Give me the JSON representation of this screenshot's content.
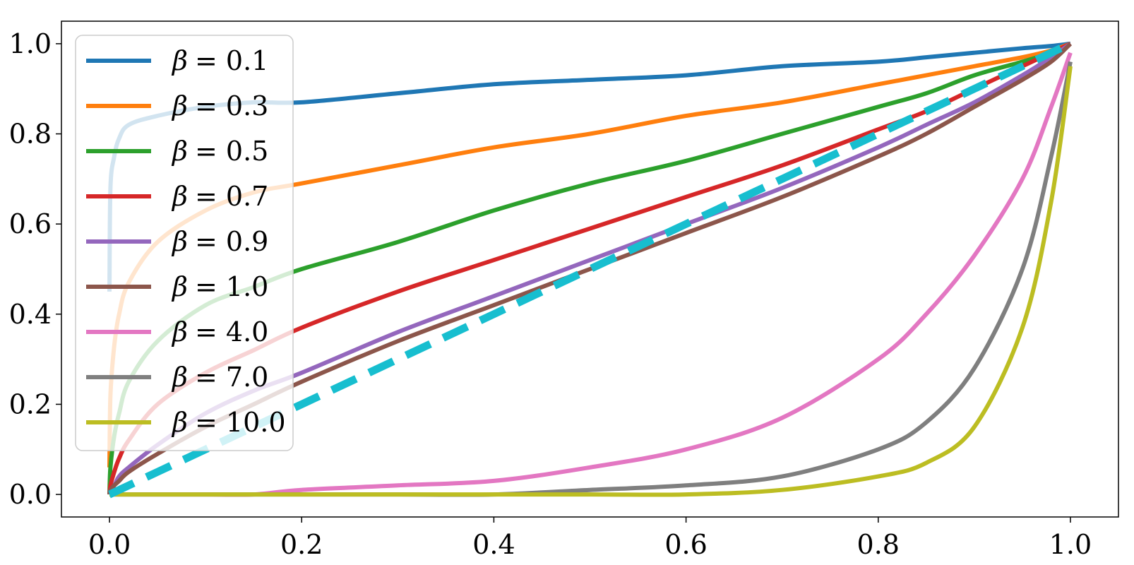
{
  "chart_data": {
    "type": "line",
    "title": "",
    "xlabel": "",
    "ylabel": "",
    "xlim": [
      -0.05,
      1.05
    ],
    "ylim": [
      -0.05,
      1.05
    ],
    "grid": false,
    "legend_position": "upper-left",
    "x_ticks": [
      "0.0",
      "0.2",
      "0.4",
      "0.6",
      "0.8",
      "1.0"
    ],
    "y_ticks": [
      "0.0",
      "0.2",
      "0.4",
      "0.6",
      "0.8",
      "1.0"
    ],
    "x": [
      0,
      0.001,
      0.005,
      0.01,
      0.02,
      0.05,
      0.1,
      0.15,
      0.2,
      0.3,
      0.4,
      0.5,
      0.6,
      0.7,
      0.8,
      0.85,
      0.9,
      0.95,
      0.98,
      1.0
    ],
    "series": [
      {
        "name": "β = 0.1",
        "legend_prefix": "β",
        "legend_value": "= 0.1",
        "color": "#1f77b4",
        "dashed": false,
        "values": [
          0.45,
          0.68,
          0.75,
          0.79,
          0.82,
          0.84,
          0.86,
          0.87,
          0.87,
          0.89,
          0.91,
          0.92,
          0.93,
          0.95,
          0.96,
          0.97,
          0.98,
          0.99,
          0.995,
          1.0
        ]
      },
      {
        "name": "β = 0.3",
        "legend_prefix": "β",
        "legend_value": "= 0.3",
        "color": "#ff7f0e",
        "dashed": false,
        "values": [
          0.06,
          0.22,
          0.33,
          0.4,
          0.47,
          0.56,
          0.63,
          0.67,
          0.69,
          0.73,
          0.77,
          0.8,
          0.84,
          0.87,
          0.91,
          0.93,
          0.95,
          0.97,
          0.985,
          1.0
        ]
      },
      {
        "name": "β = 0.5",
        "legend_prefix": "β",
        "legend_value": "= 0.5",
        "color": "#2ca02c",
        "dashed": false,
        "values": [
          0.0,
          0.06,
          0.13,
          0.18,
          0.25,
          0.34,
          0.42,
          0.46,
          0.5,
          0.56,
          0.63,
          0.69,
          0.74,
          0.8,
          0.86,
          0.89,
          0.93,
          0.96,
          0.98,
          1.0
        ]
      },
      {
        "name": "β = 0.7",
        "legend_prefix": "β",
        "legend_value": "= 0.7",
        "color": "#d62728",
        "dashed": false,
        "values": [
          0.0,
          0.02,
          0.05,
          0.08,
          0.12,
          0.2,
          0.27,
          0.32,
          0.37,
          0.45,
          0.52,
          0.59,
          0.66,
          0.73,
          0.81,
          0.85,
          0.9,
          0.95,
          0.98,
          1.0
        ]
      },
      {
        "name": "β = 0.9",
        "legend_prefix": "β",
        "legend_value": "= 0.9",
        "color": "#9467bd",
        "dashed": false,
        "values": [
          0.0,
          0.01,
          0.02,
          0.04,
          0.06,
          0.11,
          0.18,
          0.23,
          0.27,
          0.36,
          0.44,
          0.52,
          0.6,
          0.68,
          0.77,
          0.82,
          0.87,
          0.93,
          0.97,
          1.0
        ]
      },
      {
        "name": "β = 1.0",
        "legend_prefix": "β",
        "legend_value": "= 1.0",
        "color": "#8c564b",
        "dashed": false,
        "values": [
          0.0,
          0.01,
          0.02,
          0.03,
          0.05,
          0.09,
          0.15,
          0.2,
          0.25,
          0.34,
          0.42,
          0.5,
          0.58,
          0.66,
          0.75,
          0.8,
          0.86,
          0.92,
          0.96,
          1.0
        ]
      },
      {
        "name": "β = 4.0",
        "legend_prefix": "β",
        "legend_value": "= 4.0",
        "color": "#e377c2",
        "dashed": false,
        "values": [
          0.0,
          0.0,
          0.0,
          0.0,
          0.0,
          0.0,
          0.0,
          0.0,
          0.01,
          0.02,
          0.03,
          0.06,
          0.1,
          0.17,
          0.3,
          0.4,
          0.53,
          0.7,
          0.86,
          0.98
        ]
      },
      {
        "name": "β = 7.0",
        "legend_prefix": "β",
        "legend_value": "= 7.0",
        "color": "#7f7f7f",
        "dashed": false,
        "values": [
          0.0,
          0.0,
          0.0,
          0.0,
          0.0,
          0.0,
          0.0,
          0.0,
          0.0,
          0.0,
          0.0,
          0.01,
          0.02,
          0.04,
          0.1,
          0.16,
          0.28,
          0.5,
          0.75,
          0.96
        ]
      },
      {
        "name": "β = 10.0",
        "legend_prefix": "β",
        "legend_value": "= 10.0",
        "color": "#bcbd22",
        "dashed": false,
        "values": [
          0.0,
          0.0,
          0.0,
          0.0,
          0.0,
          0.0,
          0.0,
          0.0,
          0.0,
          0.0,
          0.0,
          0.0,
          0.0,
          0.01,
          0.04,
          0.07,
          0.15,
          0.37,
          0.65,
          0.95
        ]
      },
      {
        "name": "",
        "legend_prefix": "",
        "legend_value": "",
        "color": "#17becf",
        "dashed": true,
        "values": [
          0.0,
          0.001,
          0.005,
          0.01,
          0.02,
          0.05,
          0.1,
          0.15,
          0.2,
          0.3,
          0.4,
          0.5,
          0.6,
          0.7,
          0.8,
          0.85,
          0.9,
          0.95,
          0.98,
          1.0
        ]
      }
    ]
  }
}
